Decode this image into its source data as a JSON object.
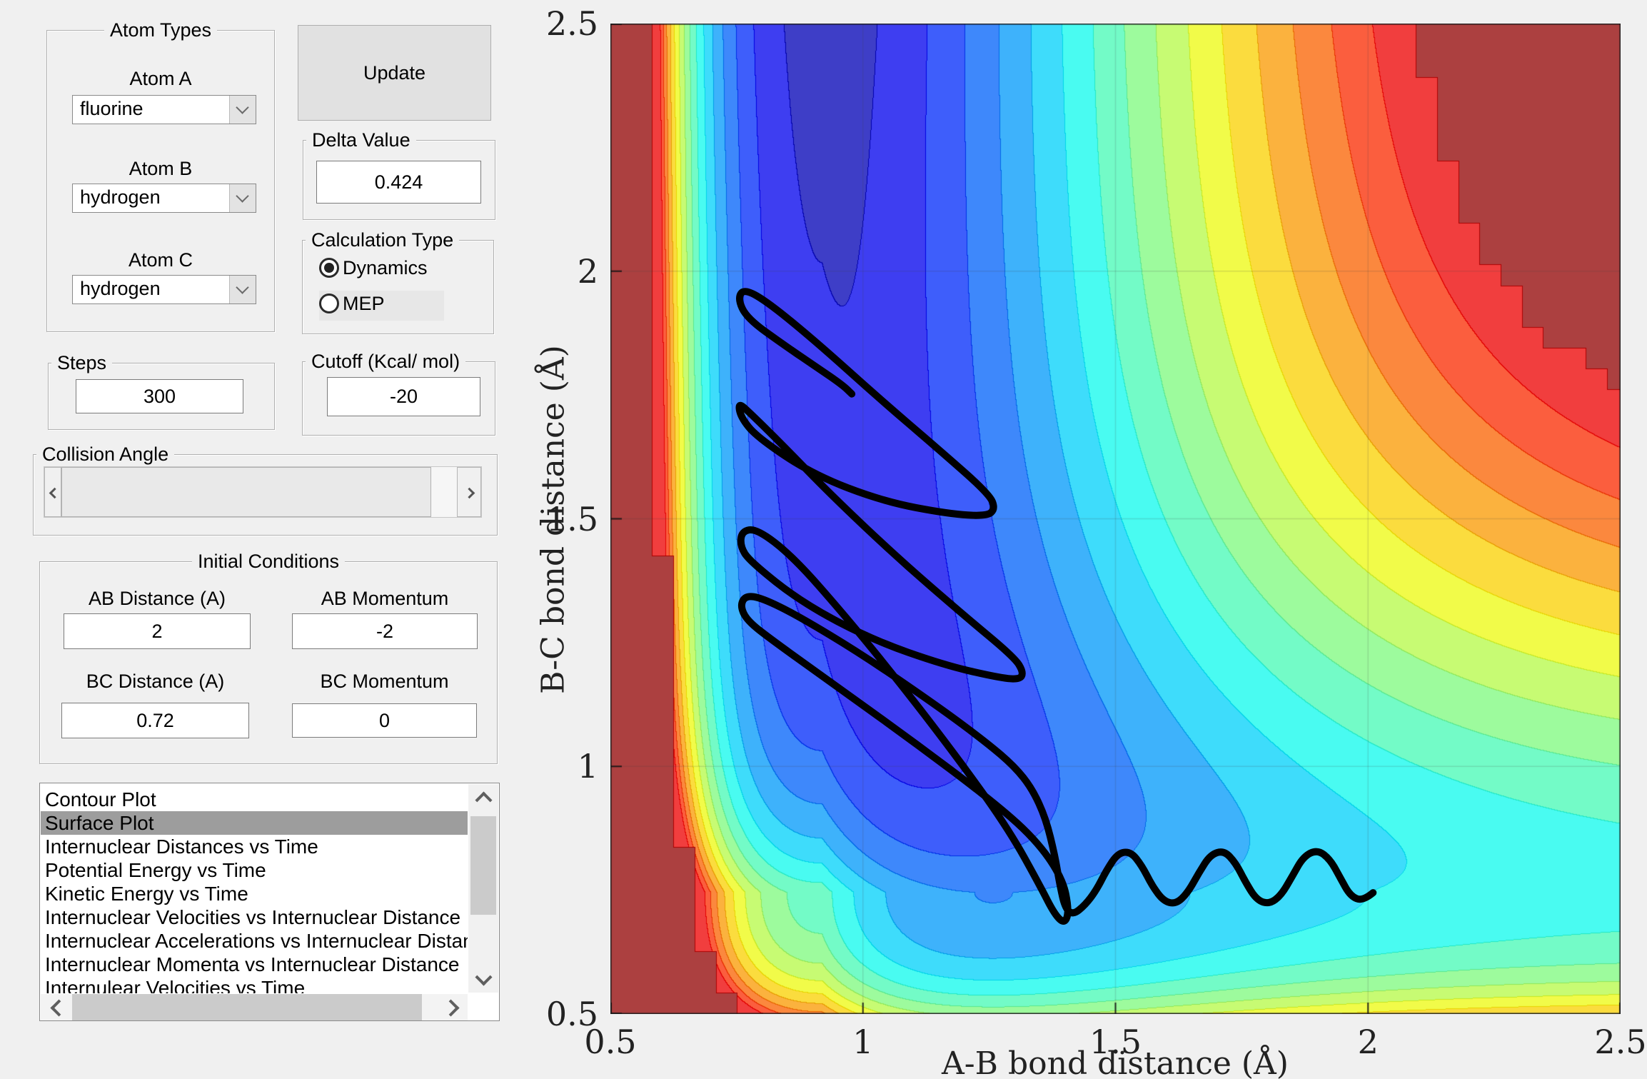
{
  "window": {
    "bg": "#f0f0f0"
  },
  "panels": {
    "atom_types": {
      "title": "Atom Types",
      "fields": [
        {
          "label": "Atom A",
          "value": "fluorine"
        },
        {
          "label": "Atom B",
          "value": "hydrogen"
        },
        {
          "label": "Atom C",
          "value": "hydrogen"
        }
      ]
    },
    "update_button": {
      "label": "Update"
    },
    "delta": {
      "title": "Delta Value",
      "value": "0.424"
    },
    "calc_type": {
      "title": "Calculation Type",
      "options": [
        {
          "label": "Dynamics",
          "selected": true
        },
        {
          "label": "MEP",
          "selected": false
        }
      ]
    },
    "steps": {
      "title": "Steps",
      "value": "300"
    },
    "cutoff": {
      "title": "Cutoff (Kcal/ mol)",
      "value": "-20"
    },
    "collision_angle": {
      "title": "Collision Angle"
    },
    "initial_conditions": {
      "title": "Initial Conditions",
      "fields": [
        {
          "label": "AB Distance (A)",
          "value": "2"
        },
        {
          "label": "AB Momentum",
          "value": "-2"
        },
        {
          "label": "BC Distance (A)",
          "value": "0.72"
        },
        {
          "label": "BC Momentum",
          "value": "0"
        }
      ]
    },
    "plot_list": {
      "items": [
        "Contour Plot",
        "Surface Plot",
        "Internuclear Distances vs Time",
        "Potential Energy vs Time",
        "Kinetic Energy vs Time",
        "Internuclear Velocities vs Internuclear Distance",
        "Internuclear Accelerations vs Internuclear Distance",
        "Internuclear Momenta vs Internuclear Distance",
        "Internulear Velocities vs Time"
      ],
      "selected_index": 1
    }
  },
  "chart_data": {
    "type": "filled-contour",
    "title": "",
    "xlabel": "A-B bond distance (Å)",
    "ylabel": "B-C bond distance (Å)",
    "xlim": [
      0.5,
      2.5
    ],
    "ylim": [
      0.5,
      2.5
    ],
    "xticks": [
      0.5,
      1,
      1.5,
      2,
      2.5
    ],
    "yticks": [
      0.5,
      1,
      1.5,
      2,
      2.5
    ],
    "xtick_labels": [
      "0.5",
      "1",
      "1.5",
      "2",
      "2.5"
    ],
    "ytick_labels": [
      "0.5",
      "1",
      "1.5",
      "2",
      "2.5"
    ],
    "grid": true,
    "colormap": "jet",
    "n_bands": 16,
    "cap_color_rgb": [
      172,
      64,
      64
    ],
    "band_alpha": 0.74,
    "surface_model": {
      "comment": "LEPS-like potential: V = U(x;D1,r1,a1)+U(y;D2,r2,a2)+C*exp(-b*max(x-r1,0))*exp(-b*max(y-r2,0)); bands uniform in -sqrt(-V)",
      "D1": 62,
      "r1": 0.92,
      "a1": 1.9,
      "D2": 38,
      "r2": 0.745,
      "a2": 2.0,
      "C": 65,
      "b": 1.5,
      "quantize_step": 0.042,
      "cap_vt": -3.74
    },
    "trajectory": {
      "color": "#000000",
      "width": 10,
      "points": [
        [
          2.01,
          0.745
        ],
        [
          1.99,
          0.728
        ],
        [
          1.965,
          0.738
        ],
        [
          1.945,
          0.775
        ],
        [
          1.925,
          0.812
        ],
        [
          1.9,
          0.832
        ],
        [
          1.872,
          0.818
        ],
        [
          1.85,
          0.778
        ],
        [
          1.828,
          0.74
        ],
        [
          1.805,
          0.722
        ],
        [
          1.78,
          0.73
        ],
        [
          1.758,
          0.765
        ],
        [
          1.738,
          0.805
        ],
        [
          1.715,
          0.83
        ],
        [
          1.688,
          0.822
        ],
        [
          1.665,
          0.785
        ],
        [
          1.643,
          0.745
        ],
        [
          1.62,
          0.722
        ],
        [
          1.595,
          0.728
        ],
        [
          1.572,
          0.76
        ],
        [
          1.552,
          0.8
        ],
        [
          1.53,
          0.828
        ],
        [
          1.505,
          0.825
        ],
        [
          1.482,
          0.79
        ],
        [
          1.462,
          0.75
        ],
        [
          1.44,
          0.72
        ],
        [
          1.415,
          0.7
        ],
        [
          1.4,
          0.715
        ],
        [
          1.39,
          0.76
        ],
        [
          1.38,
          0.82
        ],
        [
          1.362,
          0.895
        ],
        [
          1.335,
          0.955
        ],
        [
          1.3,
          1.0
        ],
        [
          1.245,
          1.048
        ],
        [
          1.15,
          1.12
        ],
        [
          1.0,
          1.225
        ],
        [
          0.87,
          1.305
        ],
        [
          0.8,
          1.34
        ],
        [
          0.768,
          1.345
        ],
        [
          0.757,
          1.325
        ],
        [
          0.77,
          1.295
        ],
        [
          0.82,
          1.255
        ],
        [
          0.95,
          1.16
        ],
        [
          1.1,
          1.05
        ],
        [
          1.25,
          0.935
        ],
        [
          1.34,
          0.855
        ],
        [
          1.395,
          0.775
        ],
        [
          1.408,
          0.71
        ],
        [
          1.4,
          0.682
        ],
        [
          1.38,
          0.7
        ],
        [
          1.35,
          0.76
        ],
        [
          1.29,
          0.87
        ],
        [
          1.2,
          1.0
        ],
        [
          1.08,
          1.16
        ],
        [
          0.96,
          1.31
        ],
        [
          0.86,
          1.425
        ],
        [
          0.79,
          1.48
        ],
        [
          0.76,
          1.475
        ],
        [
          0.757,
          1.445
        ],
        [
          0.775,
          1.415
        ],
        [
          0.88,
          1.33
        ],
        [
          1.02,
          1.255
        ],
        [
          1.16,
          1.205
        ],
        [
          1.265,
          1.18
        ],
        [
          1.31,
          1.175
        ],
        [
          1.318,
          1.19
        ],
        [
          1.3,
          1.22
        ],
        [
          1.2,
          1.305
        ],
        [
          1.07,
          1.42
        ],
        [
          0.94,
          1.545
        ],
        [
          0.84,
          1.65
        ],
        [
          0.775,
          1.715
        ],
        [
          0.753,
          1.735
        ],
        [
          0.758,
          1.705
        ],
        [
          0.79,
          1.665
        ],
        [
          0.9,
          1.59
        ],
        [
          1.04,
          1.535
        ],
        [
          1.17,
          1.51
        ],
        [
          1.245,
          1.505
        ],
        [
          1.262,
          1.52
        ],
        [
          1.25,
          1.55
        ],
        [
          1.15,
          1.64
        ],
        [
          1.03,
          1.745
        ],
        [
          0.91,
          1.855
        ],
        [
          0.815,
          1.935
        ],
        [
          0.765,
          1.965
        ],
        [
          0.752,
          1.945
        ],
        [
          0.77,
          1.905
        ],
        [
          0.845,
          1.85
        ],
        [
          0.91,
          1.805
        ],
        [
          0.96,
          1.77
        ],
        [
          0.978,
          1.752
        ]
      ]
    }
  }
}
